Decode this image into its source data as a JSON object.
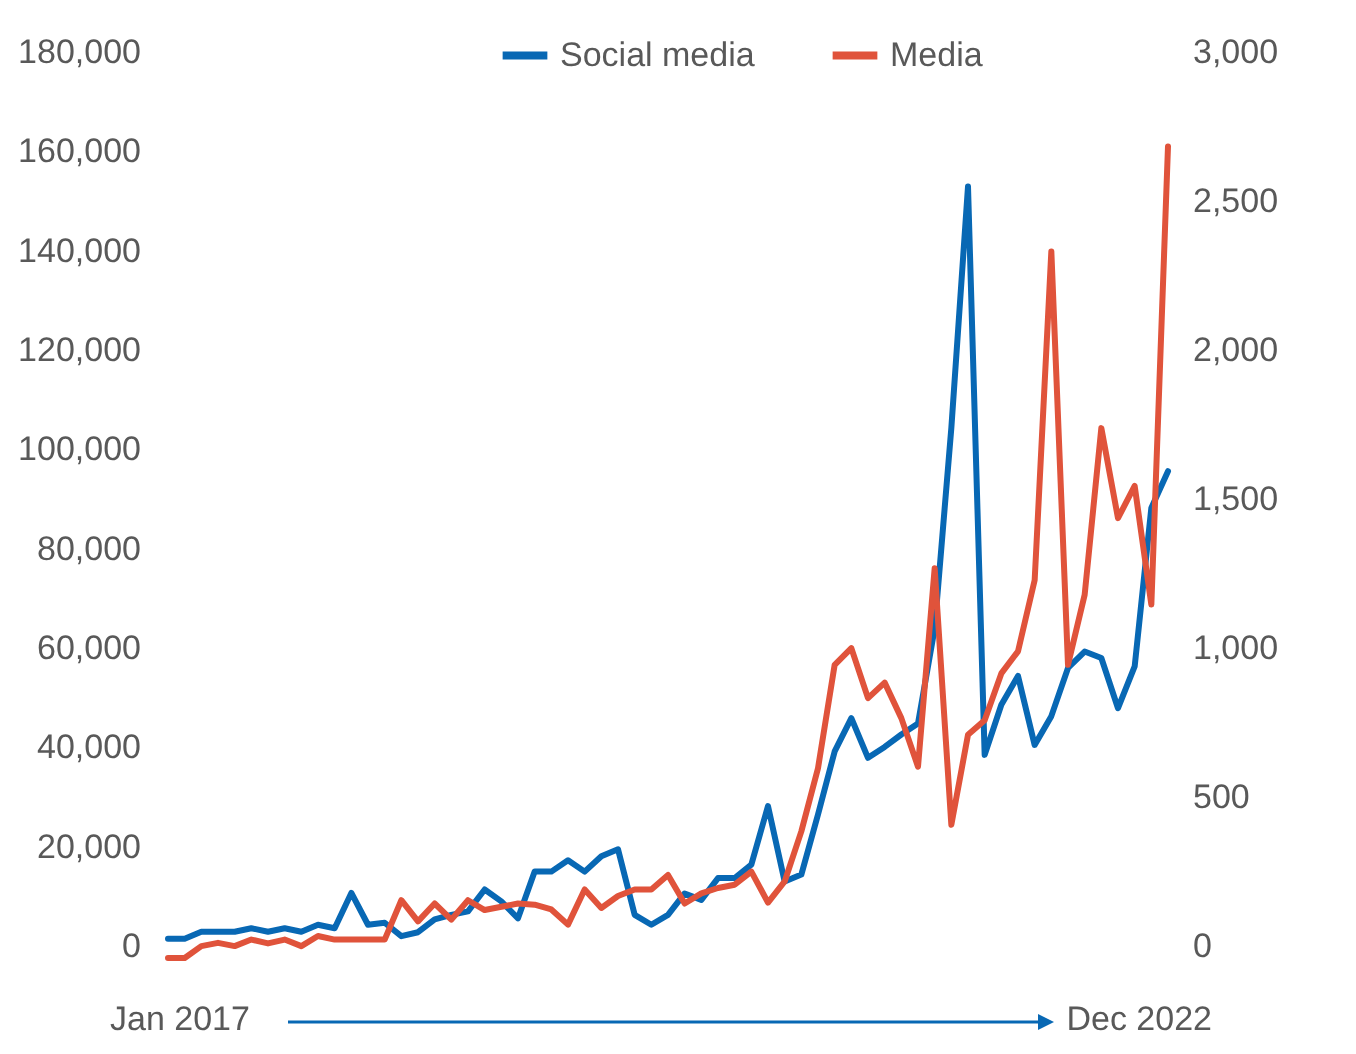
{
  "chart_data": {
    "type": "line",
    "categories": [
      null,
      null,
      null,
      null,
      null,
      null,
      null,
      null,
      null,
      null,
      null,
      null,
      null,
      null,
      null,
      null,
      null,
      null,
      null,
      null,
      null,
      null,
      null,
      null,
      null,
      null,
      null,
      null,
      null,
      null,
      null,
      null,
      null,
      null,
      null,
      null,
      null,
      null,
      null,
      null,
      null,
      null,
      null,
      null,
      null,
      null,
      null,
      null,
      null,
      null,
      null,
      null,
      null,
      null,
      null,
      null,
      null,
      null,
      null,
      null,
      null
    ],
    "series": [
      {
        "name": "Social media",
        "color": "#0868b4",
        "axis": "y",
        "values": [
          1500,
          1500,
          2900,
          2900,
          2900,
          3600,
          2900,
          3600,
          2900,
          4300,
          3600,
          10700,
          4300,
          4700,
          2000,
          2800,
          5400,
          6300,
          7000,
          11400,
          9000,
          5600,
          15000,
          15000,
          17300,
          15000,
          18100,
          19500,
          6300,
          4300,
          6300,
          10600,
          9300,
          13700,
          13700,
          16400,
          28200,
          13000,
          14400,
          26500,
          39200,
          45900,
          37900,
          40100,
          42600,
          44800,
          64000,
          104300,
          152900,
          38500,
          48600,
          54400,
          40500,
          46300,
          56000,
          59300,
          58000,
          47900,
          56300,
          88200,
          95600
        ]
      },
      {
        "name": "Media",
        "color": "#e0533b",
        "axis": "y2",
        "values": [
          -40,
          -40,
          0,
          11,
          0,
          22,
          9,
          22,
          0,
          34,
          22,
          22,
          22,
          22,
          154,
          83,
          143,
          89,
          154,
          121,
          132,
          143,
          139,
          123,
          72,
          190,
          128,
          168,
          190,
          190,
          239,
          143,
          177,
          195,
          206,
          250,
          146,
          217,
          385,
          597,
          944,
          1000,
          832,
          884,
          765,
          602,
          1268,
          407,
          709,
          758,
          915,
          989,
          1228,
          2331,
          944,
          1179,
          1738,
          1436,
          1544,
          1146,
          2683
        ]
      }
    ],
    "ylim": [
      -3600,
      180000
    ],
    "yticks": [
      0,
      {
        "value": 20000,
        "label": "20,000"
      },
      {
        "value": 40000,
        "label": "40,000"
      },
      {
        "value": 60000,
        "label": "60,000"
      },
      {
        "value": 80000,
        "label": "80,000"
      },
      {
        "value": 100000,
        "label": "100,000"
      },
      {
        "value": 120000,
        "label": "120,000"
      },
      {
        "value": 140000,
        "label": "140,000"
      },
      {
        "value": 160000,
        "label": "160,000"
      },
      {
        "value": 180000,
        "label": "180,000"
      }
    ],
    "y2lim": [
      -60,
      3000
    ],
    "y2ticks": [
      0,
      500,
      {
        "value": 1000,
        "label": "1,000"
      },
      {
        "value": 1500,
        "label": "1,500"
      },
      {
        "value": 2000,
        "label": "2,000"
      },
      {
        "value": 2500,
        "label": "2,500"
      },
      {
        "value": 3000,
        "label": "3,000"
      }
    ],
    "legend": "top",
    "grid": false,
    "line_style": "solid",
    "marker": "none",
    "annotations": [
      "Jan 2017",
      "Dec 2022"
    ]
  }
}
